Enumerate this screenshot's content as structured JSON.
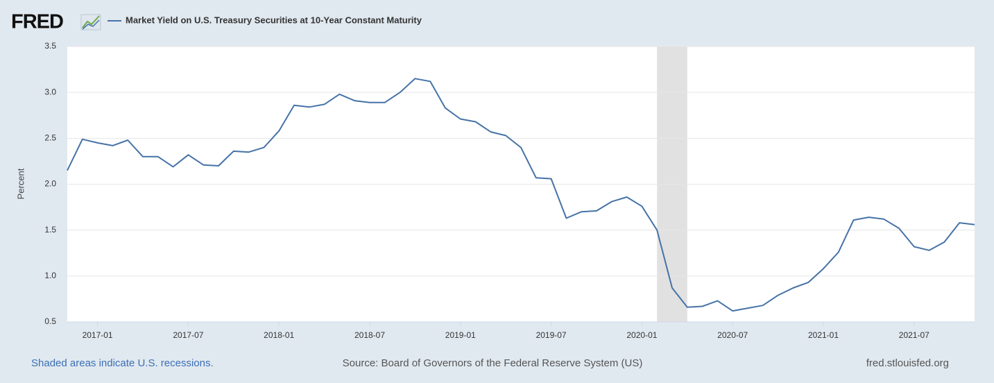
{
  "chart_data": {
    "type": "line",
    "logo": "FRED",
    "y_label": "Percent",
    "note": "Shaded areas indicate U.S. recessions.",
    "source": "Source: Board of Governors of the Federal Reserve System (US)",
    "site": "fred.stlouisfed.org",
    "x": [
      "2016-11",
      "2016-12",
      "2017-01",
      "2017-02",
      "2017-03",
      "2017-04",
      "2017-05",
      "2017-06",
      "2017-07",
      "2017-08",
      "2017-09",
      "2017-10",
      "2017-11",
      "2017-12",
      "2018-01",
      "2018-02",
      "2018-03",
      "2018-04",
      "2018-05",
      "2018-06",
      "2018-07",
      "2018-08",
      "2018-09",
      "2018-10",
      "2018-11",
      "2018-12",
      "2019-01",
      "2019-02",
      "2019-03",
      "2019-04",
      "2019-05",
      "2019-06",
      "2019-07",
      "2019-08",
      "2019-09",
      "2019-10",
      "2019-11",
      "2019-12",
      "2020-01",
      "2020-02",
      "2020-03",
      "2020-04",
      "2020-05",
      "2020-06",
      "2020-07",
      "2020-08",
      "2020-09",
      "2020-10",
      "2020-11",
      "2020-12",
      "2021-01",
      "2021-02",
      "2021-03",
      "2021-04",
      "2021-05",
      "2021-06",
      "2021-07",
      "2021-08",
      "2021-09",
      "2021-10",
      "2021-11"
    ],
    "series": [
      {
        "name": "Market Yield on U.S. Treasury Securities at 10-Year Constant Maturity",
        "color": "#4572a7",
        "values": [
          2.15,
          2.49,
          2.45,
          2.42,
          2.48,
          2.3,
          2.3,
          2.19,
          2.32,
          2.21,
          2.2,
          2.36,
          2.35,
          2.4,
          2.58,
          2.86,
          2.84,
          2.87,
          2.98,
          2.91,
          2.89,
          2.89,
          3.0,
          3.15,
          3.12,
          2.83,
          2.71,
          2.68,
          2.57,
          2.53,
          2.4,
          2.07,
          2.06,
          1.63,
          1.7,
          1.71,
          1.81,
          1.86,
          1.76,
          1.5,
          0.87,
          0.66,
          0.67,
          0.73,
          0.62,
          0.65,
          0.68,
          0.79,
          0.87,
          0.93,
          1.08,
          1.26,
          1.61,
          1.64,
          1.62,
          1.52,
          1.32,
          1.28,
          1.37,
          1.58,
          1.56
        ]
      }
    ],
    "recessions": [
      {
        "start": "2020-02",
        "end": "2020-04",
        "color": "#e1e1e1"
      }
    ],
    "xlim": [
      "2016-11",
      "2021-11"
    ],
    "xticks": [
      "2017-01",
      "2017-07",
      "2018-01",
      "2018-07",
      "2019-01",
      "2019-07",
      "2020-01",
      "2020-07",
      "2021-01",
      "2021-07"
    ],
    "ylim": [
      0.5,
      3.5
    ],
    "yticks": [
      0.5,
      {
        "value": 1,
        "label": "1.0"
      },
      1.5,
      {
        "value": 2,
        "label": "2.0"
      },
      2.5,
      {
        "value": 3,
        "label": "3.0"
      },
      3.5
    ],
    "grid": true
  }
}
